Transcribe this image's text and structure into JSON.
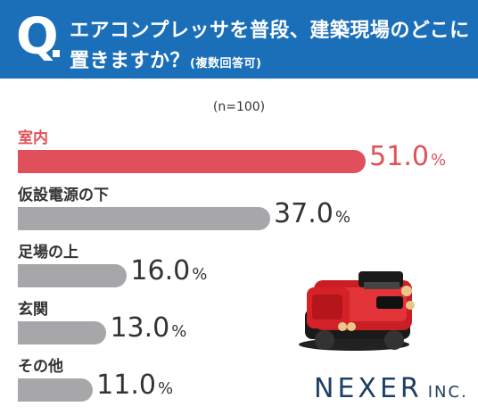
{
  "header": {
    "q_mark": "Q",
    "title_line1": "エアコンプレッサを普段、建築現場のどこに",
    "title_line2": "置きますか？",
    "title_note": "(複数回答可)"
  },
  "colors": {
    "header_bg": "#1b6fb8",
    "highlight_bar": "#e0505a",
    "default_bar": "#a7a7aa",
    "highlight_value": "#e0505a",
    "default_value": "#333333"
  },
  "chart_data": {
    "type": "bar",
    "orientation": "horizontal",
    "note": "(n=100)",
    "categories": [
      "室内",
      "仮設電源の下",
      "足場の上",
      "玄関",
      "その他"
    ],
    "values": [
      51.0,
      37.0,
      16.0,
      13.0,
      11.0
    ],
    "value_labels": [
      "51.0",
      "37.0",
      "16.0",
      "13.0",
      "11.0"
    ],
    "unit": "%",
    "highlight_index": 0
  },
  "logo": {
    "name": "NEXER",
    "suffix": "INC."
  }
}
